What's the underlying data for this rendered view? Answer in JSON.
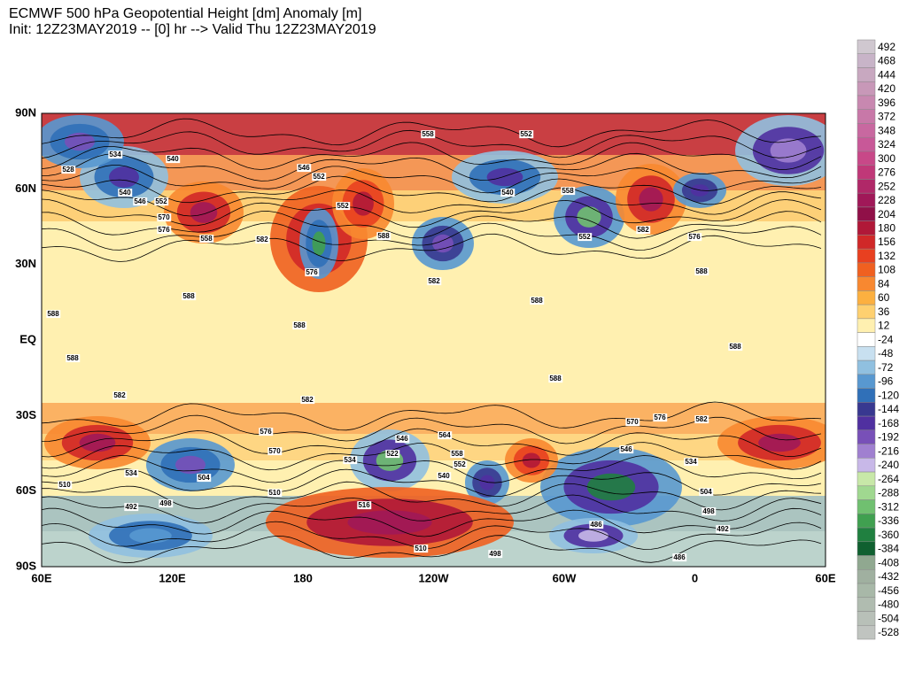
{
  "header": {
    "title": "ECMWF 500 hPa Geopotential Height [dm] Anomaly [m]",
    "subtitle": "Init: 12Z23MAY2019 -- [0] hr --> Valid Thu 12Z23MAY2019"
  },
  "map": {
    "lat_labels": [
      "90N",
      "60N",
      "30N",
      "EQ",
      "30S",
      "60S",
      "90S"
    ],
    "lon_labels": [
      "60E",
      "120E",
      "180",
      "120W",
      "60W",
      "0",
      "60E"
    ],
    "contour_labels": [
      558,
      552,
      534,
      540,
      528,
      546,
      552,
      540,
      546,
      552,
      570,
      576,
      558,
      582,
      552,
      588,
      576,
      582,
      540,
      558,
      552,
      582,
      576,
      588,
      588,
      588,
      588,
      588,
      588,
      588,
      588,
      582,
      582,
      576,
      570,
      564,
      546,
      534,
      522,
      558,
      552,
      540,
      510,
      516,
      498,
      492,
      510,
      534,
      504,
      570,
      546,
      534,
      504,
      498,
      492,
      486,
      486,
      498,
      510,
      576,
      582
    ]
  },
  "colorbar": {
    "labels": [
      492,
      468,
      444,
      420,
      396,
      372,
      348,
      324,
      300,
      276,
      252,
      228,
      204,
      180,
      156,
      132,
      108,
      84,
      60,
      36,
      12,
      -24,
      -48,
      -72,
      -96,
      -120,
      -144,
      -168,
      -192,
      -216,
      -240,
      -264,
      -288,
      -312,
      -336,
      -360,
      -384,
      -408,
      -432,
      -456,
      -480,
      -504,
      -528
    ],
    "colors": [
      "#d0c8d0",
      "#c8b4c8",
      "#c8a8c0",
      "#c898b8",
      "#c888b0",
      "#c878a8",
      "#c868a0",
      "#c85898",
      "#c84888",
      "#c03878",
      "#b02868",
      "#a01858",
      "#901048",
      "#b01838",
      "#d02828",
      "#e84020",
      "#f06020",
      "#f88830",
      "#fcb040",
      "#fed070",
      "#fff0b0",
      "#ffffff",
      "#c8e0f0",
      "#90c0e0",
      "#5898d0",
      "#3070b8",
      "#383890",
      "#5030a0",
      "#7850b8",
      "#a080d0",
      "#c8b8e8",
      "#c8e8a8",
      "#a0d890",
      "#70c070",
      "#40a050",
      "#208040",
      "#106030",
      "#90a890",
      "#a0b0a0",
      "#a8b8a8",
      "#b0bcb0",
      "#b8c0b8",
      "#c0c4c0"
    ]
  }
}
